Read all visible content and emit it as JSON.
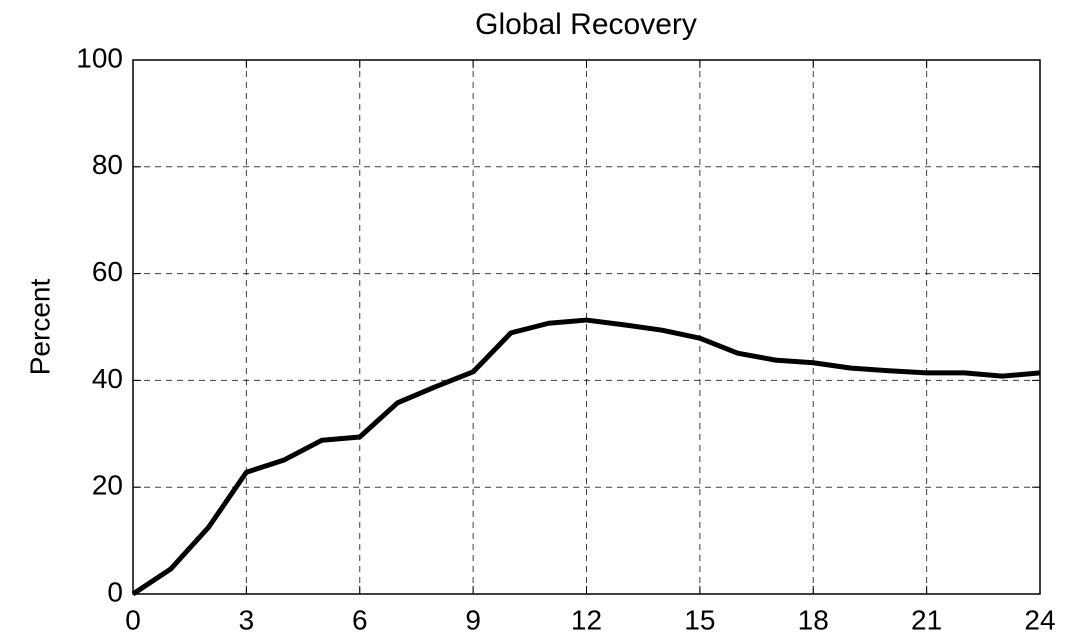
{
  "chart_data": {
    "type": "line",
    "title": "Global Recovery",
    "y_label": "Percent",
    "x": [
      0,
      1,
      2,
      3,
      4,
      5,
      6,
      7,
      8,
      9,
      10,
      11,
      12,
      13,
      14,
      15,
      16,
      17,
      18,
      19,
      20,
      21,
      22,
      23,
      24
    ],
    "series": [
      {
        "name": "Global Recovery",
        "color": "#000000",
        "values": [
          0,
          4.7,
          12.5,
          22.8,
          25.1,
          28.8,
          29.4,
          35.8,
          38.8,
          41.6,
          48.9,
          50.7,
          51.3,
          50.4,
          49.4,
          47.9,
          45.1,
          43.8,
          43.3,
          42.3,
          41.8,
          41.4,
          41.4,
          40.8,
          41.4
        ]
      }
    ],
    "xlim": [
      0,
      24
    ],
    "xticks": [
      0,
      3,
      6,
      9,
      12,
      15,
      18,
      21,
      24
    ],
    "ylim": [
      0,
      100
    ],
    "yticks": [
      0,
      20,
      40,
      60,
      80,
      100
    ],
    "grid": true
  }
}
